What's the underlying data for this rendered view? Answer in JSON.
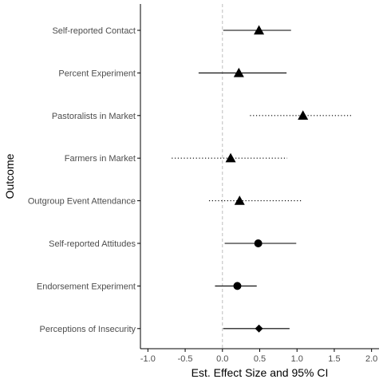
{
  "chart_data": {
    "type": "scatter",
    "subtype": "forest-plot",
    "xlabel": "Est. Effect Size and 95% CI",
    "ylabel": "Outcome",
    "xlim": [
      -1.1,
      2.1
    ],
    "x_ticks": [
      -1.0,
      -0.5,
      0.0,
      0.5,
      1.0,
      1.5,
      2.0
    ],
    "x_tick_labels": [
      "-1.0",
      "-0.5",
      "0.0",
      "0.5",
      "1.0",
      "1.5",
      "2.0"
    ],
    "reference_line": 0,
    "grid": false,
    "legend": "none",
    "colors": {
      "mark": "#000000",
      "axis": "#000000",
      "tick_label": "#4d4d4d",
      "reference_line": "#bdbdbd"
    },
    "rows": [
      {
        "label": "Self-reported Contact",
        "estimate": 0.49,
        "ci_low": 0.01,
        "ci_high": 0.92,
        "shape": "triangle",
        "line": "solid"
      },
      {
        "label": "Percent Experiment",
        "estimate": 0.22,
        "ci_low": -0.32,
        "ci_high": 0.86,
        "shape": "triangle",
        "line": "solid"
      },
      {
        "label": "Pastoralists in Market",
        "estimate": 1.08,
        "ci_low": 0.37,
        "ci_high": 1.73,
        "shape": "triangle",
        "line": "dotted"
      },
      {
        "label": "Farmers in Market",
        "estimate": 0.11,
        "ci_low": -0.68,
        "ci_high": 0.87,
        "shape": "triangle",
        "line": "dotted"
      },
      {
        "label": "Outgroup Event Attendance",
        "estimate": 0.23,
        "ci_low": -0.18,
        "ci_high": 1.08,
        "shape": "triangle",
        "line": "dotted"
      },
      {
        "label": "Self-reported Attitudes",
        "estimate": 0.48,
        "ci_low": 0.03,
        "ci_high": 0.99,
        "shape": "circle",
        "line": "solid"
      },
      {
        "label": "Endorsement Experiment",
        "estimate": 0.2,
        "ci_low": -0.1,
        "ci_high": 0.46,
        "shape": "circle",
        "line": "solid"
      },
      {
        "label": "Perceptions of Insecurity",
        "estimate": 0.49,
        "ci_low": 0.01,
        "ci_high": 0.9,
        "shape": "diamond",
        "line": "solid"
      }
    ]
  }
}
